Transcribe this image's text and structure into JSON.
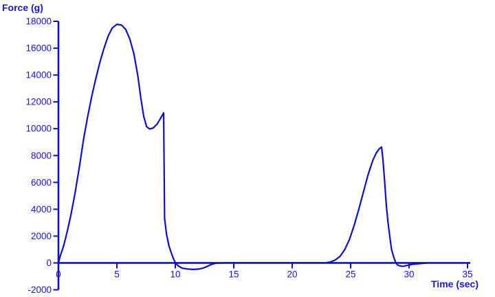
{
  "chart_data": {
    "type": "line",
    "title": "",
    "xlabel": "Time (sec)",
    "ylabel": "Force (g)",
    "xlim": [
      0,
      35
    ],
    "ylim": [
      -2000,
      18000
    ],
    "x_ticks": [
      0,
      5,
      10,
      15,
      20,
      25,
      30,
      35
    ],
    "y_ticks": [
      -2000,
      0,
      2000,
      4000,
      6000,
      8000,
      10000,
      12000,
      14000,
      16000,
      18000
    ],
    "grid": false,
    "legend": null,
    "colors": {
      "line": "#0c0cd9",
      "axis": "#0c0cd9",
      "text": "#1515e0",
      "background": "#ffffff"
    },
    "series": [
      {
        "name": "force",
        "points": [
          [
            0,
            0
          ],
          [
            0.15,
            500
          ],
          [
            0.45,
            1300
          ],
          [
            0.75,
            2350
          ],
          [
            1.05,
            3500
          ],
          [
            1.4,
            5100
          ],
          [
            1.8,
            7200
          ],
          [
            2.15,
            9200
          ],
          [
            2.5,
            10900
          ],
          [
            2.85,
            12400
          ],
          [
            3.2,
            13750
          ],
          [
            3.55,
            14950
          ],
          [
            3.9,
            16000
          ],
          [
            4.25,
            16900
          ],
          [
            4.6,
            17500
          ],
          [
            5.0,
            17780
          ],
          [
            5.4,
            17720
          ],
          [
            5.75,
            17400
          ],
          [
            6.1,
            16700
          ],
          [
            6.45,
            15600
          ],
          [
            6.8,
            13900
          ],
          [
            7.05,
            12300
          ],
          [
            7.3,
            10900
          ],
          [
            7.55,
            10150
          ],
          [
            7.8,
            9980
          ],
          [
            8.1,
            10050
          ],
          [
            8.45,
            10350
          ],
          [
            8.75,
            10800
          ],
          [
            9.0,
            11180
          ],
          [
            9.08,
            3300
          ],
          [
            9.25,
            2100
          ],
          [
            9.45,
            1300
          ],
          [
            9.65,
            750
          ],
          [
            9.85,
            300
          ],
          [
            10.05,
            -50
          ],
          [
            10.3,
            -250
          ],
          [
            10.6,
            -390
          ],
          [
            11.0,
            -450
          ],
          [
            11.5,
            -485
          ],
          [
            11.95,
            -460
          ],
          [
            12.3,
            -400
          ],
          [
            12.6,
            -310
          ],
          [
            12.85,
            -200
          ],
          [
            13.1,
            -110
          ],
          [
            13.35,
            -45
          ],
          [
            13.6,
            -15
          ],
          [
            14.5,
            0
          ],
          [
            16,
            0
          ],
          [
            18,
            0
          ],
          [
            20,
            0
          ],
          [
            22,
            0
          ],
          [
            22.9,
            15
          ],
          [
            23.3,
            80
          ],
          [
            23.7,
            230
          ],
          [
            24.1,
            500
          ],
          [
            24.5,
            1000
          ],
          [
            24.9,
            1750
          ],
          [
            25.3,
            2800
          ],
          [
            25.7,
            4000
          ],
          [
            26.1,
            5300
          ],
          [
            26.5,
            6600
          ],
          [
            26.9,
            7650
          ],
          [
            27.2,
            8200
          ],
          [
            27.45,
            8500
          ],
          [
            27.65,
            8630
          ],
          [
            27.75,
            7800
          ],
          [
            27.9,
            6200
          ],
          [
            28.05,
            4300
          ],
          [
            28.2,
            3000
          ],
          [
            28.35,
            1950
          ],
          [
            28.5,
            1000
          ],
          [
            28.7,
            400
          ],
          [
            28.85,
            50
          ],
          [
            29.0,
            -140
          ],
          [
            29.2,
            -220
          ],
          [
            29.45,
            -255
          ],
          [
            29.7,
            -210
          ],
          [
            30.0,
            -150
          ],
          [
            30.3,
            -100
          ],
          [
            30.7,
            -70
          ],
          [
            31.1,
            -40
          ],
          [
            31.5,
            -10
          ]
        ]
      }
    ]
  }
}
